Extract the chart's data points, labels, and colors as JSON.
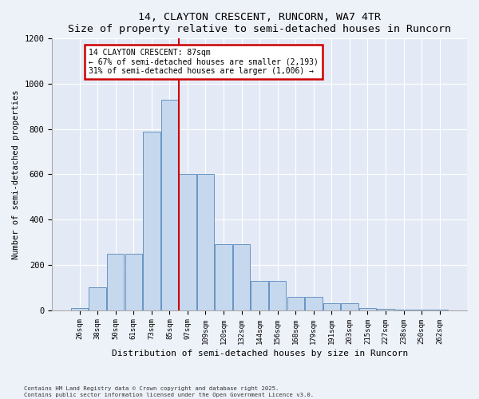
{
  "title": "14, CLAYTON CRESCENT, RUNCORN, WA7 4TR",
  "subtitle": "Size of property relative to semi-detached houses in Runcorn",
  "xlabel": "Distribution of semi-detached houses by size in Runcorn",
  "ylabel": "Number of semi-detached properties",
  "categories": [
    "26sqm",
    "38sqm",
    "50sqm",
    "61sqm",
    "73sqm",
    "85sqm",
    "97sqm",
    "109sqm",
    "120sqm",
    "132sqm",
    "144sqm",
    "156sqm",
    "168sqm",
    "179sqm",
    "191sqm",
    "203sqm",
    "215sqm",
    "227sqm",
    "238sqm",
    "250sqm",
    "262sqm"
  ],
  "values": [
    10,
    100,
    250,
    250,
    790,
    930,
    600,
    600,
    290,
    290,
    130,
    130,
    60,
    60,
    30,
    30,
    10,
    5,
    2,
    1,
    1
  ],
  "bar_color": "#c6d8ee",
  "bar_edge_color": "#5588bb",
  "vline_x": 5.5,
  "vline_color": "#cc0000",
  "annotation_title": "14 CLAYTON CRESCENT: 87sqm",
  "annotation_line2": "← 67% of semi-detached houses are smaller (2,193)",
  "annotation_line3": "31% of semi-detached houses are larger (1,006) →",
  "annotation_box_color": "#cc0000",
  "ylim": [
    0,
    1200
  ],
  "yticks": [
    0,
    200,
    400,
    600,
    800,
    1000,
    1200
  ],
  "footer_line1": "Contains HM Land Registry data © Crown copyright and database right 2025.",
  "footer_line2": "Contains public sector information licensed under the Open Government Licence v3.0.",
  "bg_color": "#edf1f8",
  "plot_bg_color": "#e4eaf5"
}
